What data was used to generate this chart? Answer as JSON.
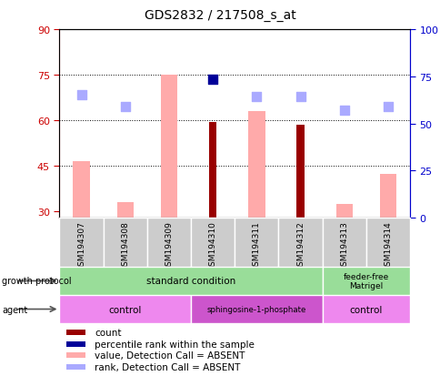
{
  "title": "GDS2832 / 217508_s_at",
  "samples": [
    "GSM194307",
    "GSM194308",
    "GSM194309",
    "GSM194310",
    "GSM194311",
    "GSM194312",
    "GSM194313",
    "GSM194314"
  ],
  "ylim_left": [
    28,
    90
  ],
  "ylim_right": [
    0,
    100
  ],
  "yticks_left": [
    30,
    45,
    60,
    75,
    90
  ],
  "yticks_right": [
    0,
    25,
    50,
    75,
    100
  ],
  "left_tick_color": "#cc0000",
  "right_tick_color": "#0000cc",
  "count_values": [
    null,
    null,
    null,
    59.5,
    null,
    58.5,
    null,
    null
  ],
  "rank_values": [
    null,
    null,
    null,
    73.5,
    null,
    null,
    null,
    null
  ],
  "value_absent": [
    46.5,
    33.0,
    75.0,
    null,
    63.0,
    null,
    32.5,
    42.5
  ],
  "rank_absent": [
    68.5,
    64.5,
    null,
    null,
    68.0,
    68.0,
    63.5,
    64.5
  ],
  "count_color": "#990000",
  "rank_color": "#000099",
  "value_absent_color": "#ffaaaa",
  "rank_absent_color": "#aaaaff",
  "growth_protocol_color": "#99dd99",
  "agent_color_light": "#ee88ee",
  "agent_color_dark": "#cc55cc",
  "sample_box_color": "#cccccc",
  "legend_items": [
    {
      "label": "count",
      "color": "#990000"
    },
    {
      "label": "percentile rank within the sample",
      "color": "#000099"
    },
    {
      "label": "value, Detection Call = ABSENT",
      "color": "#ffaaaa"
    },
    {
      "label": "rank, Detection Call = ABSENT",
      "color": "#aaaaff"
    }
  ],
  "bar_width": 0.38,
  "dot_size": 55
}
